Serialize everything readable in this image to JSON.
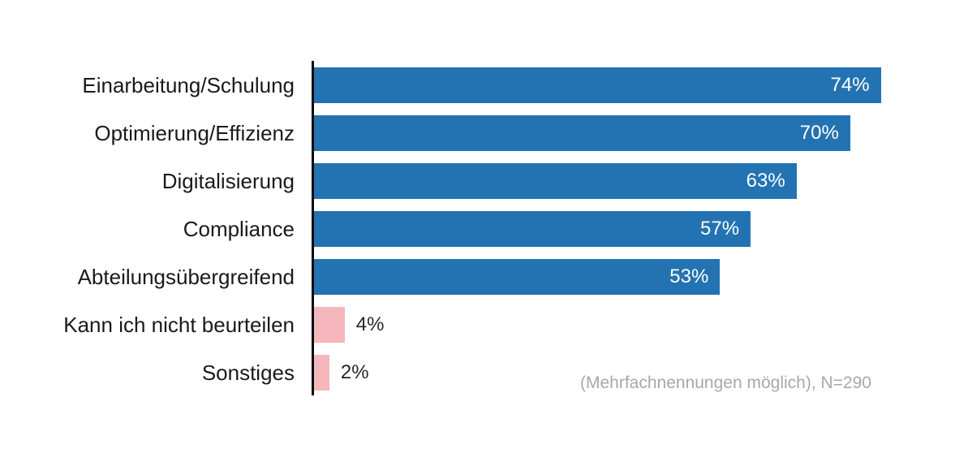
{
  "chart_data": {
    "type": "bar",
    "orientation": "horizontal",
    "categories": [
      "Einarbeitung/Schulung",
      "Optimierung/Effizienz",
      "Digitalisierung",
      "Compliance",
      "Abteilungsübergreifend",
      "Kann ich nicht beurteilen",
      "Sonstiges"
    ],
    "values": [
      74,
      70,
      63,
      57,
      53,
      4,
      2
    ],
    "value_labels": [
      "74%",
      "70%",
      "63%",
      "57%",
      "53%",
      "4%",
      "2%"
    ],
    "xlim": [
      0,
      80
    ],
    "grid": false,
    "legend": false,
    "bar_color_major": "#2373b2",
    "bar_color_minor": "#f5b6bc",
    "minor_label_color": "#262626",
    "major_label_color": "#ffffff",
    "annotation": "(Mehrfachnennungen möglich), N=290"
  }
}
